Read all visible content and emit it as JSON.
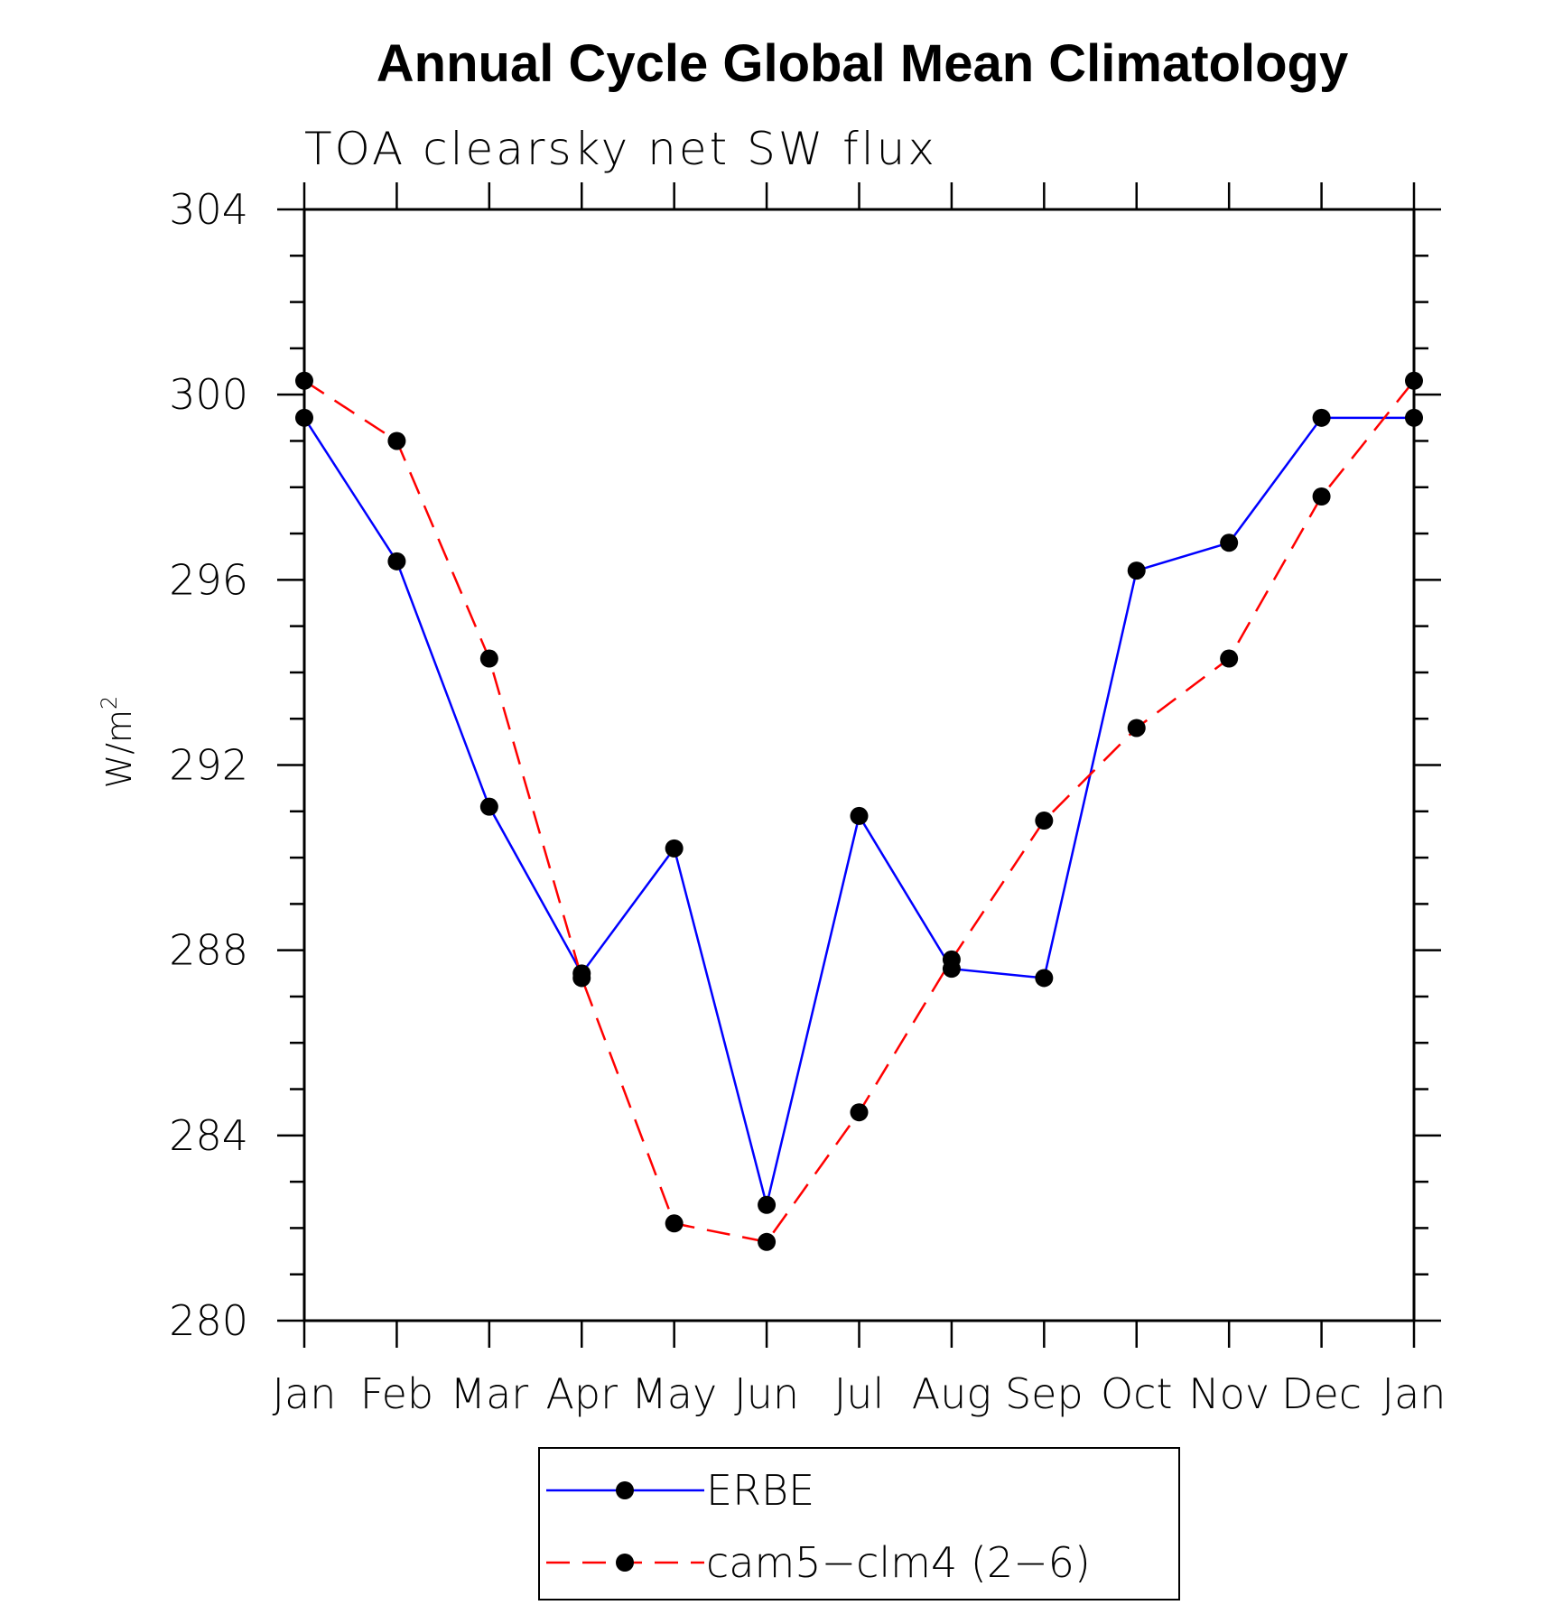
{
  "chart_data": {
    "type": "line",
    "title": "Annual Cycle Global Mean Climatology",
    "subtitle": "TOA clearsky net SW flux",
    "ylabel": "W/m",
    "ylabel_superscript": "2",
    "xlabel": "",
    "categories": [
      "Jan",
      "Feb",
      "Mar",
      "Apr",
      "May",
      "Jun",
      "Jul",
      "Aug",
      "Sep",
      "Oct",
      "Nov",
      "Dec",
      "Jan"
    ],
    "ylim": [
      280,
      304
    ],
    "yticks": [
      280,
      284,
      288,
      292,
      296,
      300,
      304
    ],
    "ytick_labels": [
      "280",
      "284",
      "288",
      "292",
      "296",
      "300",
      "304"
    ],
    "grid": false,
    "legend_position": "bottom-center",
    "series": [
      {
        "name": "ERBE",
        "color": "#0000ff",
        "line_style": "solid",
        "marker": "circle",
        "values": [
          299.5,
          296.4,
          291.1,
          287.5,
          290.2,
          282.5,
          290.9,
          287.6,
          287.4,
          296.2,
          296.8,
          299.5,
          299.5
        ]
      },
      {
        "name": "cam5−clm4 (2−6)",
        "color": "#ff0000",
        "line_style": "dashed",
        "marker": "circle",
        "values": [
          300.3,
          299.0,
          294.3,
          287.4,
          282.1,
          281.7,
          284.5,
          287.8,
          290.8,
          292.8,
          294.3,
          297.8,
          300.3
        ]
      }
    ]
  }
}
